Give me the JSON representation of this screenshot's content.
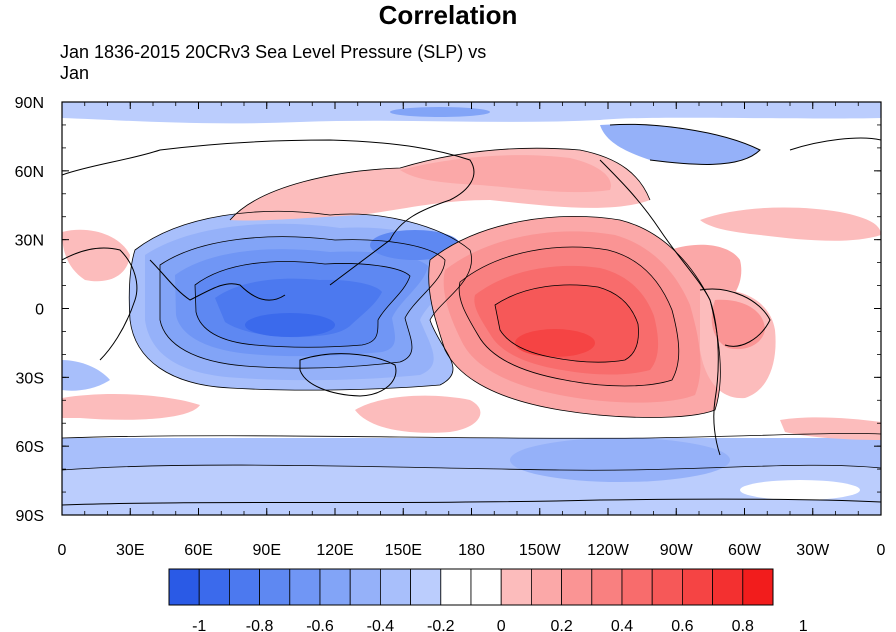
{
  "title": "Correlation",
  "subtitle_line1": "Jan 1836-2015 20CRv3 Sea Level Pressure (SLP) vs",
  "subtitle_line2": "Jan",
  "lat_labels": [
    "90N",
    "60N",
    "30N",
    "0",
    "30S",
    "60S",
    "90S"
  ],
  "lon_labels": [
    "0",
    "30E",
    "60E",
    "90E",
    "120E",
    "150E",
    "180",
    "150W",
    "120W",
    "90W",
    "60W",
    "30W",
    "0"
  ],
  "colorbar": {
    "colors": [
      "#2a5ae6",
      "#3b6aec",
      "#4c79ef",
      "#5e88f2",
      "#7096f5",
      "#82a4f7",
      "#95b1f9",
      "#a8bffb",
      "#bbcdfd",
      "#ffffff",
      "#ffffff",
      "#fcbcbc",
      "#fba8a8",
      "#fa9494",
      "#f98080",
      "#f86c6c",
      "#f65858",
      "#f54444",
      "#f33030",
      "#f21c1c"
    ],
    "tick_labels": [
      "-1",
      "-0.8",
      "-0.6",
      "-0.4",
      "-0.2",
      "0",
      "0.2",
      "0.4",
      "0.6",
      "0.8",
      "1"
    ]
  },
  "colors": {
    "land_line": "#000000",
    "neg_fill": "#6a8ef2",
    "pos_fill": "#f05a5a"
  }
}
